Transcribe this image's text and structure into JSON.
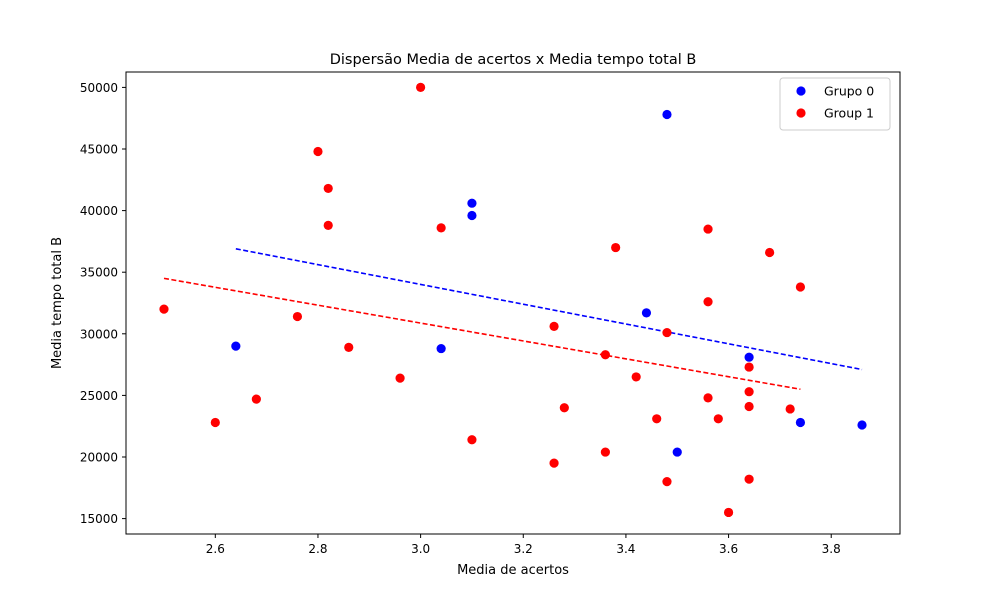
{
  "chart_data": {
    "type": "scatter",
    "title": "Dispersão Media de acertos x Media tempo total B",
    "xlabel": "Media de acertos",
    "ylabel": "Media tempo total B",
    "xlim": [
      2.426,
      3.934
    ],
    "ylim": [
      13750,
      51250
    ],
    "xticks": [
      "2.6",
      "2.8",
      "3.0",
      "3.2",
      "3.4",
      "3.6",
      "3.8"
    ],
    "yticks": [
      "15000",
      "20000",
      "25000",
      "30000",
      "35000",
      "40000",
      "45000",
      "50000"
    ],
    "grid": false,
    "legend_position": "top-right",
    "series": [
      {
        "name": "Grupo 0",
        "color": "#0000ff",
        "points": [
          [
            2.64,
            29000
          ],
          [
            3.04,
            28800
          ],
          [
            3.1,
            40600
          ],
          [
            3.1,
            39600
          ],
          [
            3.44,
            31700
          ],
          [
            3.48,
            47800
          ],
          [
            3.5,
            20400
          ],
          [
            3.64,
            28100
          ],
          [
            3.74,
            22800
          ],
          [
            3.86,
            22600
          ]
        ],
        "trend": {
          "x": [
            2.64,
            3.86
          ],
          "y": [
            36900,
            27100
          ]
        }
      },
      {
        "name": "Group 1",
        "color": "#ff0000",
        "points": [
          [
            2.5,
            32000
          ],
          [
            2.6,
            22800
          ],
          [
            2.68,
            24700
          ],
          [
            2.76,
            31400
          ],
          [
            2.8,
            44800
          ],
          [
            2.82,
            41800
          ],
          [
            2.82,
            38800
          ],
          [
            2.86,
            28900
          ],
          [
            2.96,
            26400
          ],
          [
            3.0,
            50000
          ],
          [
            3.04,
            38600
          ],
          [
            3.1,
            21400
          ],
          [
            3.26,
            30600
          ],
          [
            3.26,
            19500
          ],
          [
            3.28,
            24000
          ],
          [
            3.36,
            28300
          ],
          [
            3.36,
            20400
          ],
          [
            3.38,
            37000
          ],
          [
            3.42,
            26500
          ],
          [
            3.46,
            23100
          ],
          [
            3.48,
            30100
          ],
          [
            3.48,
            18000
          ],
          [
            3.56,
            38500
          ],
          [
            3.56,
            32600
          ],
          [
            3.56,
            24800
          ],
          [
            3.58,
            23100
          ],
          [
            3.6,
            15500
          ],
          [
            3.64,
            27300
          ],
          [
            3.64,
            25300
          ],
          [
            3.64,
            24100
          ],
          [
            3.64,
            18200
          ],
          [
            3.68,
            36600
          ],
          [
            3.72,
            23900
          ],
          [
            3.74,
            33800
          ]
        ],
        "trend": {
          "x": [
            2.5,
            3.74
          ],
          "y": [
            34500,
            25500
          ]
        }
      }
    ]
  }
}
